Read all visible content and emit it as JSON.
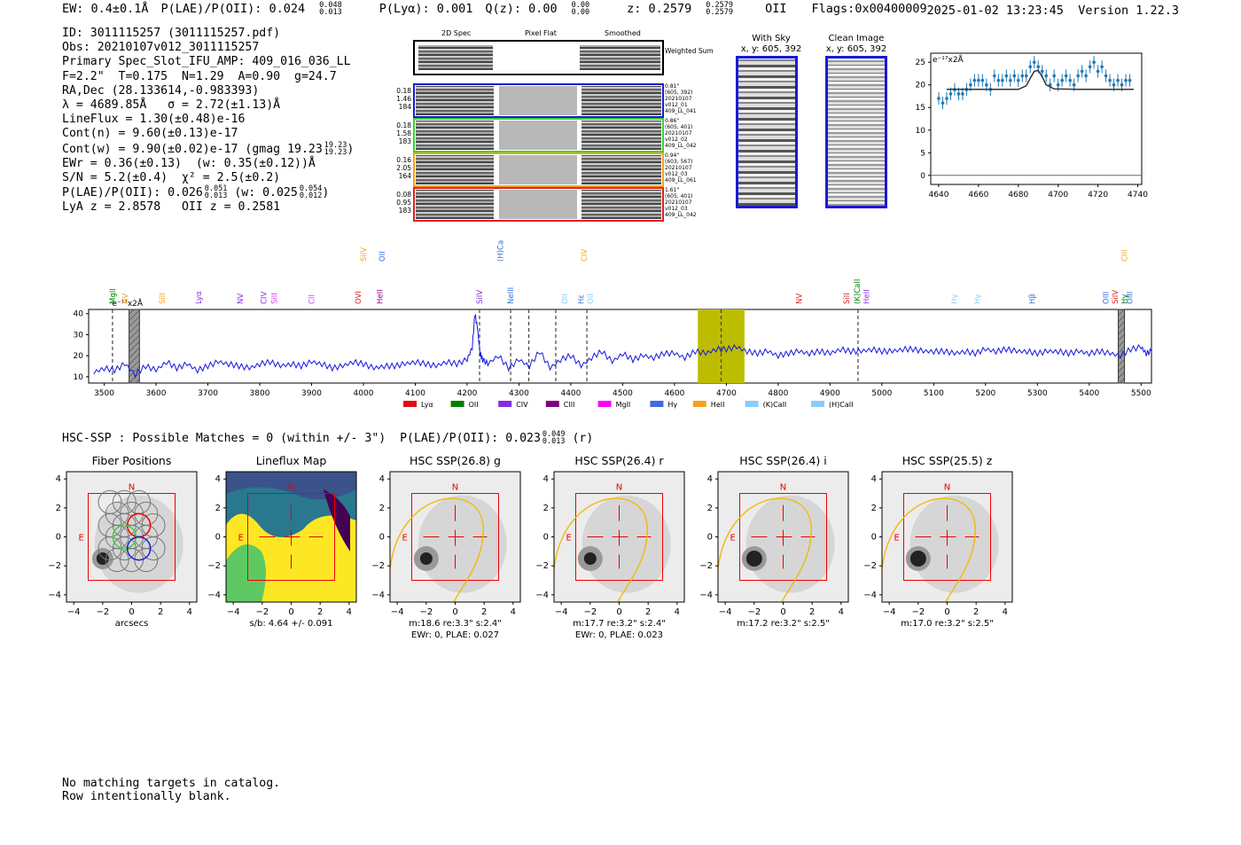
{
  "header": {
    "ew": "EW: 0.4±0.1Å",
    "plae_label": "P(LAE)/P(OII): 0.024",
    "plae_hi": "0.048",
    "plae_lo": "0.013",
    "plya": "P(Lyα): 0.001",
    "qz_label": "Q(z): 0.00",
    "qz_hi": "0.00",
    "qz_lo": "0.00",
    "z_label": "z: 0.2579",
    "z_hi": "0.2579",
    "z_lo": "0.2579",
    "z_line": "OII",
    "flags": "Flags:0x00400009",
    "timestamp": "2025-01-02 13:23:45",
    "version": "Version 1.22.3"
  },
  "summary": {
    "lines": [
      "ID: 3011115257 (3011115257.pdf)",
      "Obs: 20210107v012_3011115257",
      "Primary Spec_Slot_IFU_AMP: 409_016_036_LL",
      "F=2.2\"  T=0.175  N=1.29  A=0.90  g=24.7",
      "RA,Dec (28.133614,-0.983393)",
      "λ = 4689.85Å   σ = 2.72(±1.13)Å",
      "LineFlux = 1.30(±0.48)e-16",
      "Cont(n) = 9.60(±0.13)e-17"
    ],
    "contw": "Cont(w) = 9.90(±0.02)e-17 (gmag 19.23",
    "contw_hi": "19.23",
    "contw_lo": "19.23",
    "ewr": "EWr = 0.36(±0.13)  (w: 0.35(±0.12))Å",
    "sn": "S/N = 5.2(±0.4)  χ² = 2.5(±0.2)",
    "plae": "P(LAE)/P(OII): 0.026",
    "plae_hi": "0.051",
    "plae_lo": "0.013",
    "plae_w": "(w: 0.025",
    "plae_w_hi": "0.054",
    "plae_w_lo": "0.012",
    "lya": "LyA z = 2.8578   OII z = 0.2581"
  },
  "cutouts": {
    "col_headers": [
      "2D Spec",
      "Pixel Flat",
      "Smoothed"
    ],
    "weighted_sum": "Weighted Sum",
    "rows": [
      {
        "vals": [
          "0.18",
          "1.46",
          "184"
        ],
        "info": [
          "0.81\"",
          "(605, 392)",
          "20210107",
          "v012_01",
          "409_LL_041"
        ],
        "color": "#1a1ad6"
      },
      {
        "vals": [
          "0.18",
          "1.58",
          "183"
        ],
        "info": [
          "0.86\"",
          "(605, 401)",
          "20210107",
          "v012_02",
          "409_LL_042"
        ],
        "color": "#3ad13a"
      },
      {
        "vals": [
          "0.16",
          "2.05",
          "164"
        ],
        "info": [
          "0.94\"",
          "(603, 567)",
          "20210107",
          "v012_03",
          "409_LL_061"
        ],
        "color": "#f5a31a"
      },
      {
        "vals": [
          "0.08",
          "0.95",
          "183"
        ],
        "info": [
          "1.61\"",
          "(605, 401)",
          "20210107",
          "v012_03",
          "409_LL_042"
        ],
        "color": "#e02020"
      }
    ],
    "sky_title": "With Sky",
    "sky_coords": "x, y: 605, 392",
    "clean_title": "Clean Image",
    "clean_coords": "x, y: 605, 392"
  },
  "chart_data": [
    {
      "type": "line",
      "name": "line-fit",
      "ylabel": "e⁻¹⁷x2Å",
      "xlim": [
        4636,
        4742
      ],
      "ylim": [
        -2,
        27
      ],
      "xticks": [
        4640,
        4660,
        4680,
        4700,
        4720,
        4740
      ],
      "yticks": [
        0,
        5,
        10,
        15,
        20,
        25
      ],
      "data_x": [
        4640,
        4642,
        4644,
        4646,
        4648,
        4650,
        4652,
        4654,
        4656,
        4658,
        4660,
        4662,
        4664,
        4666,
        4668,
        4670,
        4672,
        4674,
        4676,
        4678,
        4680,
        4682,
        4684,
        4686,
        4688,
        4690,
        4692,
        4694,
        4696,
        4698,
        4700,
        4702,
        4704,
        4706,
        4708,
        4710,
        4712,
        4714,
        4716,
        4718,
        4720,
        4722,
        4724,
        4726,
        4728,
        4730,
        4732,
        4734,
        4736
      ],
      "data_y": [
        17,
        16,
        17,
        18,
        19,
        18,
        18,
        19,
        20,
        21,
        21,
        21,
        20,
        19,
        22,
        21,
        21,
        22,
        21,
        22,
        21,
        22,
        22,
        24,
        25,
        24,
        23,
        22,
        20,
        22,
        20,
        21,
        22,
        21,
        20,
        22,
        23,
        22,
        24,
        25,
        23,
        24,
        22,
        21,
        20,
        21,
        20,
        21,
        21
      ],
      "fit_x": [
        4644,
        4670,
        4680,
        4684,
        4686,
        4688,
        4690,
        4692,
        4694,
        4698,
        4710,
        4738
      ],
      "fit_y": [
        19,
        19,
        19,
        19.8,
        21.5,
        23,
        23.2,
        21.8,
        20,
        19.1,
        19,
        19
      ]
    },
    {
      "type": "line",
      "name": "full-spectrum",
      "ylabel": "e⁻¹⁷x2Å",
      "xlim": [
        3470,
        5520
      ],
      "ylim": [
        7,
        42
      ],
      "xticks": [
        3500,
        3600,
        3700,
        3800,
        3900,
        4000,
        4100,
        4200,
        4300,
        4400,
        4500,
        4600,
        4700,
        4800,
        4900,
        5000,
        5100,
        5200,
        5300,
        5400,
        5500
      ],
      "yticks": [
        10,
        20,
        30,
        40
      ],
      "x": [
        3480,
        3500,
        3520,
        3540,
        3560,
        3580,
        3600,
        3620,
        3640,
        3660,
        3680,
        3700,
        3720,
        3740,
        3760,
        3780,
        3800,
        3820,
        3840,
        3860,
        3880,
        3900,
        3920,
        3940,
        3960,
        3980,
        4000,
        4020,
        4040,
        4060,
        4080,
        4100,
        4120,
        4140,
        4160,
        4180,
        4200,
        4210,
        4215,
        4220,
        4225,
        4230,
        4240,
        4260,
        4280,
        4300,
        4320,
        4340,
        4360,
        4380,
        4400,
        4420,
        4440,
        4460,
        4480,
        4500,
        4520,
        4540,
        4560,
        4580,
        4600,
        4620,
        4640,
        4660,
        4680,
        4700,
        4720,
        4740,
        4760,
        4780,
        4800,
        4820,
        4840,
        4860,
        4880,
        4900,
        4920,
        4940,
        4960,
        4980,
        5000,
        5020,
        5040,
        5060,
        5080,
        5100,
        5120,
        5140,
        5160,
        5180,
        5200,
        5220,
        5240,
        5260,
        5280,
        5300,
        5320,
        5340,
        5360,
        5380,
        5400,
        5420,
        5440,
        5460,
        5480,
        5500,
        5510,
        5520
      ],
      "y": [
        12,
        14,
        13,
        16,
        11,
        15,
        13,
        17,
        14,
        16,
        13,
        15,
        17,
        16,
        15,
        14,
        16,
        17,
        15,
        16,
        15,
        17,
        16,
        14,
        15,
        17,
        16,
        14,
        15,
        15,
        16,
        17,
        16,
        15,
        17,
        16,
        18,
        24,
        40,
        33,
        21,
        18,
        16,
        20,
        14,
        18,
        15,
        22,
        14,
        18,
        20,
        15,
        19,
        22,
        17,
        21,
        18,
        20,
        19,
        21,
        21,
        19,
        22,
        21,
        23,
        23,
        24,
        22,
        21,
        22,
        20,
        21,
        22,
        21,
        22,
        21,
        23,
        22,
        22,
        23,
        22,
        22,
        23,
        23,
        22,
        22,
        22,
        21,
        22,
        21,
        23,
        22,
        23,
        22,
        22,
        21,
        22,
        22,
        21,
        22,
        21,
        22,
        21,
        20,
        23,
        24,
        21,
        22
      ],
      "hatched": [
        [
          3548,
          3568
        ],
        [
          5456,
          5468
        ]
      ],
      "highlight": [
        4645,
        4735
      ],
      "dashed": [
        3516,
        4224,
        4284,
        4319,
        4371,
        4431,
        4690,
        4954
      ],
      "labels": [
        {
          "x": 3516,
          "t": "MgII",
          "c": "#008000"
        },
        {
          "x": 3540,
          "t": "NV",
          "c": "#f5a31a"
        },
        {
          "x": 3612,
          "t": "SiII",
          "c": "#f5a31a"
        },
        {
          "x": 3682,
          "t": "Lyα",
          "c": "#8a2be2"
        },
        {
          "x": 3762,
          "t": "NV",
          "c": "#8a2be2"
        },
        {
          "x": 3808,
          "t": "CIV",
          "c": "#8a2be2"
        },
        {
          "x": 3828,
          "t": "SiII",
          "c": "#d03cf0"
        },
        {
          "x": 3900,
          "t": "CII",
          "c": "#d03cf0"
        },
        {
          "x": 3990,
          "t": "OVI",
          "c": "#e02020"
        },
        {
          "x": 4032,
          "t": "HeII",
          "c": "#8b008b"
        },
        {
          "x": 4224,
          "t": "SiIV",
          "c": "#8a2be2"
        },
        {
          "x": 4284,
          "t": "NeIII",
          "c": "#3070e0"
        },
        {
          "x": 4388,
          "t": "OII",
          "c": "#87cefa"
        },
        {
          "x": 4420,
          "t": "Hε",
          "c": "#3070e0"
        },
        {
          "x": 4438,
          "t": "OII",
          "c": "#87cefa"
        },
        {
          "x": 4840,
          "t": "NV",
          "c": "#e02020"
        },
        {
          "x": 4932,
          "t": "SiII",
          "c": "#e02020"
        },
        {
          "x": 4952,
          "t": "(K)CaII",
          "c": "#008000"
        },
        {
          "x": 4970,
          "t": "HeII",
          "c": "#8a2be2"
        },
        {
          "x": 5140,
          "t": "Hγ",
          "c": "#87cefa"
        },
        {
          "x": 5184,
          "t": "Hγ",
          "c": "#87cefa"
        },
        {
          "x": 5290,
          "t": "Hβ",
          "c": "#3070e0"
        },
        {
          "x": 5432,
          "t": "OIII",
          "c": "#3070e0"
        },
        {
          "x": 5450,
          "t": "SiIV",
          "c": "#e02020"
        },
        {
          "x": 5478,
          "t": "OIII",
          "c": "#3070e0"
        },
        {
          "x": 5468,
          "t": "Hγ",
          "c": "#008000"
        }
      ],
      "upper_labels": [
        {
          "x": 4000,
          "t": "SiIV",
          "c": "#f5a31a"
        },
        {
          "x": 4036,
          "t": "OII",
          "c": "#3070e0"
        },
        {
          "x": 4264,
          "t": "(H)CaII",
          "c": "#3070e0"
        },
        {
          "x": 4426,
          "t": "CIV",
          "c": "#f5a31a"
        },
        {
          "x": 5468,
          "t": "CIII",
          "c": "#f5a31a"
        }
      ],
      "legend": [
        {
          "t": "Lyα",
          "c": "#e01010"
        },
        {
          "t": "OII",
          "c": "#008000"
        },
        {
          "t": "CIV",
          "c": "#8a2be2"
        },
        {
          "t": "CIII",
          "c": "#800080"
        },
        {
          "t": "MgII",
          "c": "#ff00ff"
        },
        {
          "t": "Hγ",
          "c": "#4169e1"
        },
        {
          "t": "HeII",
          "c": "#f5a31a"
        },
        {
          "t": "(K)CaII",
          "c": "#87cefa"
        },
        {
          "t": "(H)CaII",
          "c": "#87cefa"
        }
      ]
    }
  ],
  "hsc": {
    "title": "HSC-SSP : Possible Matches = 0 (within +/- 3\")  P(LAE)/P(OII): 0.023",
    "title_hi": "0.049",
    "title_lo": "0.013",
    "title_suffix": "(r)",
    "panels": [
      {
        "title": "Fiber Positions",
        "caption1": "arcsecs",
        "caption2": ""
      },
      {
        "title": "Lineflux Map",
        "caption1": "s/b: 4.64 +/- 0.091",
        "caption2": ""
      },
      {
        "title": "HSC SSP(26.8) g",
        "caption1": "m:18.6  re:3.3\"  s:2.4\"",
        "caption2": "EWr: 0, PLAE: 0.027"
      },
      {
        "title": "HSC SSP(26.4) r",
        "caption1": "m:17.7  re:3.2\"  s:2.4\"",
        "caption2": "EWr: 0, PLAE: 0.023"
      },
      {
        "title": "HSC SSP(26.4) i",
        "caption1": "m:17.2  re:3.2\"  s:2.5\"",
        "caption2": ""
      },
      {
        "title": "HSC SSP(25.5) z",
        "caption1": "m:17.0  re:3.2\"  s:2.5\"",
        "caption2": ""
      }
    ],
    "ticks": [
      "4",
      "2",
      "0",
      "−2",
      "−4"
    ],
    "xticks": [
      "−4",
      "−2",
      "0",
      "2",
      "4"
    ],
    "north": "N",
    "east": "E"
  },
  "footer": {
    "line1": "No matching targets in catalog.",
    "line2": "Row intentionally blank."
  }
}
